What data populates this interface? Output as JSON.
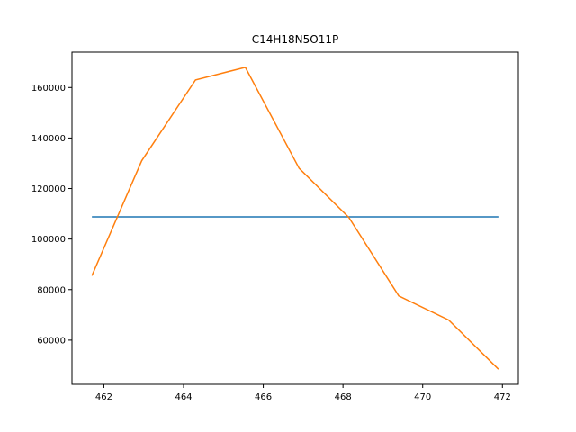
{
  "chart_data": {
    "type": "line",
    "title": "C14H18N5O11P",
    "xlabel": "",
    "ylabel": "",
    "xlim": [
      461.2,
      472.4
    ],
    "ylim": [
      42500,
      174000
    ],
    "x_ticks": [
      462,
      464,
      466,
      468,
      470,
      472
    ],
    "y_ticks": [
      60000,
      80000,
      100000,
      120000,
      140000,
      160000
    ],
    "grid": false,
    "legend": "none",
    "series": [
      {
        "color": "#1f77b4",
        "points": [
          [
            461.7,
            108800
          ],
          [
            471.9,
            108800
          ]
        ]
      },
      {
        "color": "#ff7f0e",
        "points": [
          [
            461.7,
            85500
          ],
          [
            462.95,
            131000
          ],
          [
            464.3,
            163000
          ],
          [
            465.55,
            168000
          ],
          [
            466.9,
            128000
          ],
          [
            468.15,
            108500
          ],
          [
            469.4,
            77500
          ],
          [
            470.65,
            68000
          ],
          [
            471.9,
            48500
          ]
        ]
      }
    ]
  }
}
